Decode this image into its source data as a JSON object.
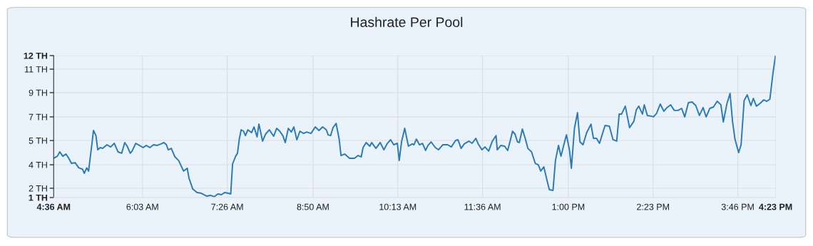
{
  "chart_data": {
    "type": "line",
    "title": "Hashrate Per Pool",
    "xlim": [
      4.6,
      16.3833
    ],
    "ylim": [
      1,
      12
    ],
    "xticks": [
      {
        "value": 4.6,
        "label": "4:36 AM"
      },
      {
        "value": 6.05,
        "label": "6:03 AM"
      },
      {
        "value": 7.4333,
        "label": "7:26 AM"
      },
      {
        "value": 8.8333,
        "label": "8:50 AM"
      },
      {
        "value": 10.2167,
        "label": "10:13 AM"
      },
      {
        "value": 11.6,
        "label": "11:36 AM"
      },
      {
        "value": 13.0,
        "label": "1:00 PM"
      },
      {
        "value": 14.3833,
        "label": "2:23 PM"
      },
      {
        "value": 15.7667,
        "label": "3:46 PM"
      },
      {
        "value": 16.3833,
        "label": "4:23 PM"
      }
    ],
    "yticks": [
      {
        "value": 1,
        "label": "1 TH"
      },
      {
        "value": 1.72,
        "label": "2 TH"
      },
      {
        "value": 3.54,
        "label": "4 TH"
      },
      {
        "value": 5.42,
        "label": "5 TH"
      },
      {
        "value": 7.25,
        "label": "7 TH"
      },
      {
        "value": 9.13,
        "label": "9 TH"
      },
      {
        "value": 10.95,
        "label": "11 TH"
      },
      {
        "value": 12,
        "label": "12 TH"
      }
    ],
    "grid": true,
    "marker": "none",
    "line_style": "solid",
    "series": [
      {
        "color": "#2a7ab8",
        "x": [
          4.6,
          4.66,
          4.7,
          4.75,
          4.8,
          4.84,
          4.89,
          4.95,
          5.01,
          5.07,
          5.1,
          5.14,
          5.17,
          5.22,
          5.25,
          5.29,
          5.32,
          5.36,
          5.4,
          5.47,
          5.53,
          5.59,
          5.65,
          5.71,
          5.76,
          5.8,
          5.85,
          5.88,
          5.94,
          6.0,
          6.06,
          6.11,
          6.17,
          6.23,
          6.29,
          6.35,
          6.4,
          6.44,
          6.47,
          6.52,
          6.58,
          6.64,
          6.72,
          6.78,
          6.81,
          6.87,
          6.94,
          7.01,
          7.1,
          7.16,
          7.22,
          7.28,
          7.34,
          7.39,
          7.45,
          7.49,
          7.52,
          7.57,
          7.6,
          7.63,
          7.66,
          7.7,
          7.73,
          7.77,
          7.83,
          7.87,
          7.92,
          7.95,
          8.01,
          8.06,
          8.12,
          8.19,
          8.24,
          8.29,
          8.34,
          8.38,
          8.43,
          8.48,
          8.52,
          8.57,
          8.62,
          8.68,
          8.73,
          8.8,
          8.87,
          8.93,
          8.99,
          9.05,
          9.08,
          9.12,
          9.16,
          9.21,
          9.26,
          9.29,
          9.35,
          9.43,
          9.51,
          9.57,
          9.62,
          9.65,
          9.7,
          9.76,
          9.79,
          9.86,
          9.93,
          9.99,
          10.04,
          10.1,
          10.15,
          10.21,
          10.24,
          10.28,
          10.33,
          10.39,
          10.45,
          10.48,
          10.52,
          10.57,
          10.62,
          10.67,
          10.71,
          10.76,
          10.83,
          10.88,
          10.95,
          11.03,
          11.09,
          11.16,
          11.2,
          11.25,
          11.3,
          11.38,
          11.43,
          11.49,
          11.53,
          11.59,
          11.64,
          11.7,
          11.76,
          11.82,
          11.84,
          11.9,
          11.96,
          12.01,
          12.05,
          12.09,
          12.13,
          12.17,
          12.2,
          12.25,
          12.3,
          12.34,
          12.4,
          12.46,
          12.51,
          12.55,
          12.6,
          12.65,
          12.69,
          12.75,
          12.79,
          12.84,
          12.88,
          12.93,
          12.97,
          13.02,
          13.05,
          13.1,
          13.15,
          13.19,
          13.24,
          13.3,
          13.37,
          13.41,
          13.46,
          13.51,
          13.57,
          13.6,
          13.67,
          13.73,
          13.79,
          13.83,
          13.87,
          13.93,
          14.0,
          14.07,
          14.11,
          14.15,
          14.21,
          14.24,
          14.29,
          14.35,
          14.39,
          14.44,
          14.5,
          14.56,
          14.61,
          14.67,
          14.73,
          14.79,
          14.85,
          14.9,
          14.96,
          15.02,
          15.08,
          15.14,
          15.2,
          15.25,
          15.31,
          15.37,
          15.43,
          15.49,
          15.53,
          15.59,
          15.64,
          15.68,
          15.72,
          15.78,
          15.82,
          15.87,
          15.92,
          15.98,
          16.02,
          16.07,
          16.13,
          16.19,
          16.24,
          16.29,
          16.34,
          16.38
        ],
        "values": [
          4.04,
          4.2,
          4.54,
          4.2,
          4.37,
          4.1,
          3.65,
          3.7,
          3.3,
          3.2,
          2.88,
          3.3,
          3.05,
          4.98,
          6.2,
          5.8,
          4.7,
          4.87,
          4.81,
          5.09,
          4.92,
          5.2,
          4.54,
          4.43,
          5.26,
          4.98,
          4.43,
          4.6,
          5.2,
          5.04,
          4.87,
          5.04,
          4.87,
          5.09,
          5.04,
          5.15,
          5.26,
          5.09,
          4.7,
          4.81,
          4.15,
          3.87,
          3.05,
          3.27,
          2.49,
          1.66,
          1.39,
          1.33,
          1.11,
          1.17,
          1.06,
          1.28,
          1.22,
          1.39,
          1.33,
          1.28,
          3.6,
          4.2,
          4.43,
          5.53,
          6.25,
          6.14,
          5.8,
          6.25,
          6.03,
          6.47,
          5.7,
          6.69,
          5.37,
          5.92,
          6.25,
          5.75,
          6.36,
          6.14,
          5.8,
          5.26,
          6.36,
          6.08,
          6.47,
          5.48,
          6.14,
          5.97,
          6.08,
          5.97,
          6.47,
          6.2,
          6.47,
          6.25,
          5.86,
          5.8,
          6.42,
          6.75,
          5.53,
          4.26,
          4.37,
          4.04,
          4.04,
          4.26,
          4.15,
          4.87,
          5.26,
          4.98,
          5.26,
          4.81,
          5.26,
          4.7,
          5.15,
          5.48,
          5.09,
          5.2,
          3.87,
          5.37,
          6.36,
          4.98,
          5.15,
          5.09,
          5.53,
          5.09,
          5.2,
          4.65,
          5.04,
          5.31,
          4.87,
          4.7,
          5.09,
          5.09,
          4.92,
          5.42,
          5.48,
          4.81,
          5.15,
          5.37,
          5.2,
          5.59,
          5.15,
          4.7,
          4.92,
          4.6,
          5.37,
          5.8,
          4.7,
          5.04,
          4.98,
          4.65,
          5.37,
          6.14,
          5.92,
          5.31,
          5.26,
          6.31,
          5.53,
          4.81,
          4.54,
          3.65,
          3.54,
          3.05,
          3.38,
          2.38,
          1.61,
          1.55,
          3.87,
          5.04,
          4.2,
          5.15,
          5.86,
          4.65,
          3.27,
          6.36,
          7.58,
          5.31,
          5.09,
          6.03,
          6.69,
          5.59,
          5.59,
          5.2,
          6.14,
          6.58,
          6.53,
          5.48,
          5.37,
          7.47,
          7.47,
          8.08,
          6.42,
          6.91,
          7.8,
          8.08,
          7.47,
          8.19,
          7.36,
          7.31,
          7.25,
          7.52,
          8.24,
          7.69,
          7.97,
          8.19,
          7.75,
          7.75,
          7.91,
          7.25,
          8.35,
          8.41,
          8.13,
          7.36,
          7.97,
          7.25,
          7.91,
          8.02,
          8.46,
          8.19,
          6.86,
          8.3,
          9.07,
          6.91,
          5.53,
          4.48,
          5.09,
          8.52,
          8.96,
          8.13,
          8.68,
          8.08,
          8.3,
          8.57,
          8.46,
          8.63,
          10.62,
          11.95
        ]
      }
    ]
  }
}
